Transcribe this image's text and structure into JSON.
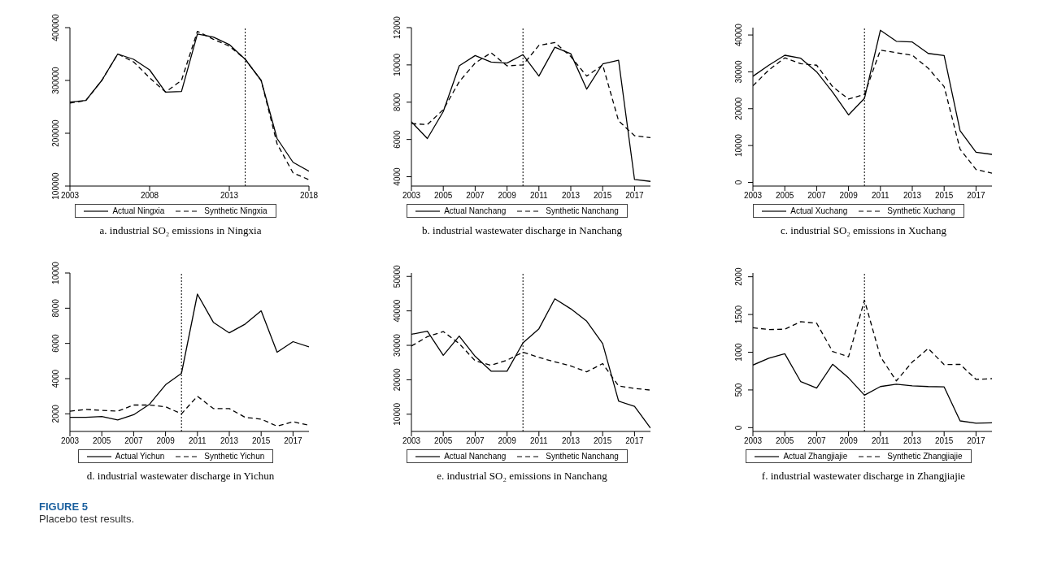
{
  "chart_data": [
    {
      "type": "line",
      "title": "a. industrial SO₂ emissions in Ningxia",
      "x": [
        2003,
        2004,
        2005,
        2006,
        2007,
        2008,
        2009,
        2010,
        2011,
        2012,
        2013,
        2014,
        2015,
        2016,
        2017,
        2018
      ],
      "xlim": [
        2003,
        2018
      ],
      "xticks": [
        2003,
        2008,
        2013,
        2018
      ],
      "ylim": [
        100000,
        400000
      ],
      "yticks": [
        100000,
        200000,
        300000,
        400000
      ],
      "grid": false,
      "legend": "bottom",
      "marker": "none",
      "annotations": [
        "FIGURE 5",
        "Placebo test results."
      ],
      "ref_lines": [
        {
          "axis": "x",
          "value": 2014,
          "line_style": "dotted",
          "color": "#000000"
        }
      ],
      "series": [
        {
          "name": "Actual Ningxia",
          "color": "#000000",
          "line_style": "solid",
          "values": [
            259000,
            262000,
            300000,
            350000,
            340000,
            320000,
            278000,
            279000,
            388000,
            382000,
            368000,
            340000,
            300000,
            190000,
            145000,
            128000
          ]
        },
        {
          "name": "Synthetic Ningxia",
          "color": "#000000",
          "line_style": "dashed",
          "values": [
            257000,
            262000,
            300000,
            350000,
            335000,
            305000,
            278000,
            300000,
            393000,
            378000,
            365000,
            340000,
            300000,
            180000,
            125000,
            112000
          ]
        }
      ]
    },
    {
      "type": "line",
      "title": "b. industrial wastewater discharge in Nanchang",
      "x": [
        2003,
        2004,
        2005,
        2006,
        2007,
        2008,
        2009,
        2010,
        2011,
        2012,
        2013,
        2014,
        2015,
        2016,
        2017,
        2018
      ],
      "xlim": [
        2003,
        2018
      ],
      "xticks": [
        2003,
        2005,
        2007,
        2009,
        2011,
        2013,
        2015,
        2017
      ],
      "ylim": [
        3500,
        12000
      ],
      "yticks": [
        4000,
        6000,
        8000,
        10000,
        12000
      ],
      "grid": false,
      "legend": "bottom",
      "marker": "none",
      "ref_lines": [
        {
          "axis": "x",
          "value": 2010,
          "line_style": "dotted",
          "color": "#000000"
        }
      ],
      "series": [
        {
          "name": "Actual Nanchang",
          "color": "#000000",
          "line_style": "solid",
          "values": [
            6950,
            6050,
            7500,
            9950,
            10500,
            10150,
            10100,
            10550,
            9400,
            10950,
            10600,
            8700,
            10050,
            10250,
            3850,
            3750
          ]
        },
        {
          "name": "Synthetic Nanchang",
          "color": "#000000",
          "line_style": "dashed",
          "values": [
            6850,
            6800,
            7600,
            9100,
            10100,
            10650,
            9950,
            10000,
            11050,
            11200,
            10450,
            9400,
            10000,
            7000,
            6200,
            6100
          ]
        }
      ]
    },
    {
      "type": "line",
      "title": "c. industrial SO₂ emissions in Xuchang",
      "x": [
        2003,
        2004,
        2005,
        2006,
        2007,
        2008,
        2009,
        2010,
        2011,
        2012,
        2013,
        2014,
        2015,
        2016,
        2017,
        2018
      ],
      "xlim": [
        2003,
        2018
      ],
      "xticks": [
        2003,
        2005,
        2007,
        2009,
        2011,
        2013,
        2015,
        2017
      ],
      "ylim": [
        -1000,
        42000
      ],
      "yticks": [
        0,
        10000,
        20000,
        30000,
        40000
      ],
      "grid": false,
      "legend": "bottom",
      "marker": "none",
      "ref_lines": [
        {
          "axis": "x",
          "value": 2010,
          "line_style": "dotted",
          "color": "#000000"
        }
      ],
      "series": [
        {
          "name": "Actual Xuchang",
          "color": "#000000",
          "line_style": "solid",
          "values": [
            28800,
            31800,
            34500,
            33700,
            30000,
            24500,
            18300,
            22800,
            41300,
            38300,
            38100,
            35000,
            34400,
            14000,
            8200,
            7600
          ]
        },
        {
          "name": "Synthetic Xuchang",
          "color": "#000000",
          "line_style": "dashed",
          "values": [
            26200,
            30500,
            33800,
            32200,
            31800,
            26000,
            22600,
            23900,
            35900,
            35200,
            34500,
            31000,
            26000,
            9000,
            3500,
            2500
          ]
        }
      ]
    },
    {
      "type": "line",
      "title": "d. industrial wastewater discharge in Yichun",
      "x": [
        2003,
        2004,
        2005,
        2006,
        2007,
        2008,
        2009,
        2010,
        2011,
        2012,
        2013,
        2014,
        2015,
        2016,
        2017,
        2018
      ],
      "xlim": [
        2003,
        2018
      ],
      "xticks": [
        2003,
        2005,
        2007,
        2009,
        2011,
        2013,
        2015,
        2017
      ],
      "ylim": [
        1000,
        10000
      ],
      "yticks": [
        2000,
        4000,
        6000,
        8000,
        10000
      ],
      "grid": false,
      "legend": "bottom",
      "marker": "none",
      "ref_lines": [
        {
          "axis": "x",
          "value": 2010,
          "line_style": "dotted",
          "color": "#000000"
        }
      ],
      "series": [
        {
          "name": "Actual Yichun",
          "color": "#000000",
          "line_style": "solid",
          "values": [
            1800,
            1800,
            1850,
            1650,
            1950,
            2550,
            3650,
            4300,
            8800,
            7200,
            6600,
            7100,
            7850,
            5500,
            6100,
            5800
          ]
        },
        {
          "name": "Synthetic Yichun",
          "color": "#000000",
          "line_style": "dashed",
          "values": [
            2150,
            2250,
            2200,
            2150,
            2500,
            2500,
            2400,
            2000,
            3000,
            2300,
            2300,
            1800,
            1700,
            1300,
            1550,
            1350
          ]
        }
      ]
    },
    {
      "type": "line",
      "title": "e. industrial SO₂ emissions in Nanchang",
      "x": [
        2003,
        2004,
        2005,
        2006,
        2007,
        2008,
        2009,
        2010,
        2011,
        2012,
        2013,
        2014,
        2015,
        2016,
        2017,
        2018
      ],
      "xlim": [
        2003,
        2018
      ],
      "xticks": [
        2003,
        2005,
        2007,
        2009,
        2011,
        2013,
        2015,
        2017
      ],
      "ylim": [
        5000,
        51000
      ],
      "yticks": [
        10000,
        20000,
        30000,
        40000,
        50000
      ],
      "grid": false,
      "legend": "bottom",
      "marker": "none",
      "ref_lines": [
        {
          "axis": "x",
          "value": 2010,
          "line_style": "dotted",
          "color": "#000000"
        }
      ],
      "series": [
        {
          "name": "Actual Nanchang",
          "color": "#000000",
          "line_style": "solid",
          "values": [
            33200,
            34100,
            27100,
            32700,
            26800,
            22500,
            22500,
            30700,
            34800,
            43500,
            40600,
            37000,
            30500,
            13800,
            12300,
            6000
          ]
        },
        {
          "name": "Synthetic Nanchang",
          "color": "#000000",
          "line_style": "dashed",
          "values": [
            29800,
            32500,
            34000,
            30500,
            25500,
            24200,
            25700,
            28000,
            26500,
            25200,
            24000,
            22300,
            24700,
            18200,
            17500,
            17000
          ]
        }
      ]
    },
    {
      "type": "line",
      "title": "f. industrial wastewater discharge in Zhangjiajie",
      "x": [
        2003,
        2004,
        2005,
        2006,
        2007,
        2008,
        2009,
        2010,
        2011,
        2012,
        2013,
        2014,
        2015,
        2016,
        2017,
        2018
      ],
      "xlim": [
        2003,
        2018
      ],
      "xticks": [
        2003,
        2005,
        2007,
        2009,
        2011,
        2013,
        2015,
        2017
      ],
      "ylim": [
        -50,
        2050
      ],
      "yticks": [
        0,
        500,
        1000,
        1500,
        2000
      ],
      "grid": false,
      "legend": "bottom",
      "marker": "none",
      "ref_lines": [
        {
          "axis": "x",
          "value": 2010,
          "line_style": "dotted",
          "color": "#000000"
        }
      ],
      "series": [
        {
          "name": "Actual Zhangjiajie",
          "color": "#000000",
          "line_style": "solid",
          "values": [
            830,
            920,
            980,
            610,
            525,
            840,
            660,
            430,
            545,
            575,
            555,
            545,
            540,
            90,
            60,
            65
          ]
        },
        {
          "name": "Synthetic Zhangjiajie",
          "color": "#000000",
          "line_style": "dashed",
          "values": [
            1325,
            1300,
            1305,
            1405,
            1385,
            1010,
            940,
            1690,
            940,
            620,
            870,
            1050,
            835,
            840,
            640,
            650
          ]
        }
      ]
    }
  ]
}
